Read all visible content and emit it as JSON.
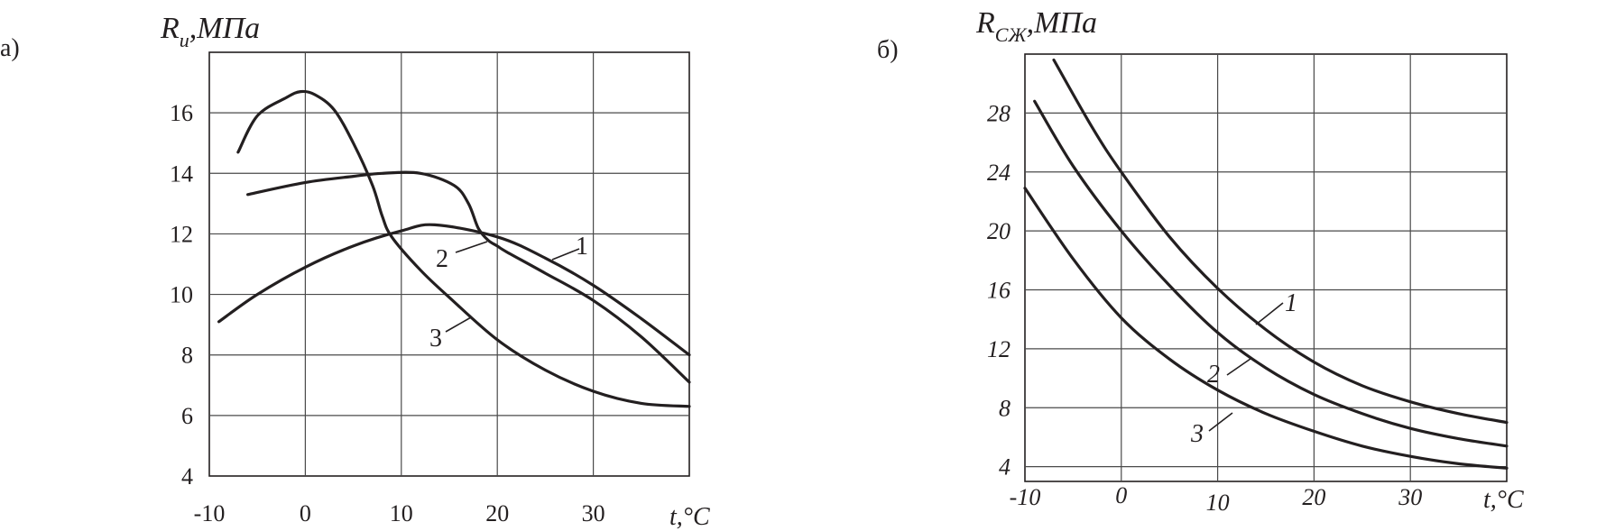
{
  "chart_data": [
    {
      "type": "line",
      "panel_label": "а)",
      "title": "",
      "ylabel": {
        "main": "R",
        "sub": "и",
        "unit": ",МПа"
      },
      "xlabel": "t,°C",
      "xlim": [
        -10,
        40
      ],
      "ylim": [
        4,
        18
      ],
      "grid": true,
      "x_ticks": [
        "-10",
        "0",
        "10",
        "20",
        "30"
      ],
      "y_ticks": [
        "4",
        "6",
        "8",
        "10",
        "12",
        "14",
        "16"
      ],
      "series": [
        {
          "name": "1",
          "x": [
            -9,
            -5,
            0,
            5,
            10,
            13.5,
            20,
            25,
            30,
            35,
            40
          ],
          "y": [
            9.1,
            10.0,
            10.9,
            11.6,
            12.1,
            12.3,
            11.9,
            11.2,
            10.3,
            9.2,
            8.0
          ]
        },
        {
          "name": "2",
          "x": [
            -6,
            0,
            5,
            8,
            12,
            15.5,
            17,
            18,
            19,
            20,
            21,
            25,
            30,
            35,
            40
          ],
          "y": [
            13.3,
            13.7,
            13.9,
            14.0,
            14.0,
            13.6,
            13.0,
            12.2,
            11.8,
            11.6,
            11.4,
            10.7,
            9.8,
            8.6,
            7.1
          ]
        },
        {
          "name": "3",
          "x": [
            -7,
            -5,
            -2,
            -0.5,
            1,
            3,
            5,
            7,
            8,
            9,
            12,
            15,
            20,
            25,
            30,
            35,
            40
          ],
          "y": [
            14.7,
            15.9,
            16.5,
            16.7,
            16.6,
            16.1,
            15.0,
            13.6,
            12.6,
            11.9,
            10.8,
            9.9,
            8.5,
            7.5,
            6.8,
            6.4,
            6.3
          ]
        }
      ]
    },
    {
      "type": "line",
      "panel_label": "б)",
      "title": "",
      "ylabel": {
        "main": "R",
        "sub": "СЖ",
        "unit": ",МПа"
      },
      "xlabel": "t,°C",
      "xlim": [
        -10,
        40
      ],
      "ylim": [
        3,
        32
      ],
      "grid": true,
      "x_ticks": [
        "-10",
        "0",
        "10",
        "20",
        "30"
      ],
      "y_ticks": [
        "4",
        "8",
        "12",
        "16",
        "20",
        "24",
        "28"
      ],
      "series": [
        {
          "name": "1",
          "x": [
            -7,
            -3,
            0,
            5,
            10,
            15,
            20,
            25,
            30,
            35,
            40
          ],
          "y": [
            31.6,
            27.0,
            24.0,
            19.6,
            16.1,
            13.3,
            11.1,
            9.5,
            8.4,
            7.6,
            7.0
          ]
        },
        {
          "name": "2",
          "x": [
            -9,
            -5,
            0,
            5,
            10,
            15,
            20,
            25,
            30,
            35,
            40
          ],
          "y": [
            28.8,
            24.4,
            20.0,
            16.3,
            13.1,
            10.7,
            8.9,
            7.6,
            6.6,
            5.9,
            5.4
          ]
        },
        {
          "name": "3",
          "x": [
            -10,
            -5,
            0,
            5,
            10,
            15,
            20,
            25,
            30,
            35,
            40
          ],
          "y": [
            22.9,
            18.1,
            14.1,
            11.3,
            9.2,
            7.6,
            6.4,
            5.4,
            4.7,
            4.2,
            3.9
          ]
        }
      ]
    }
  ]
}
